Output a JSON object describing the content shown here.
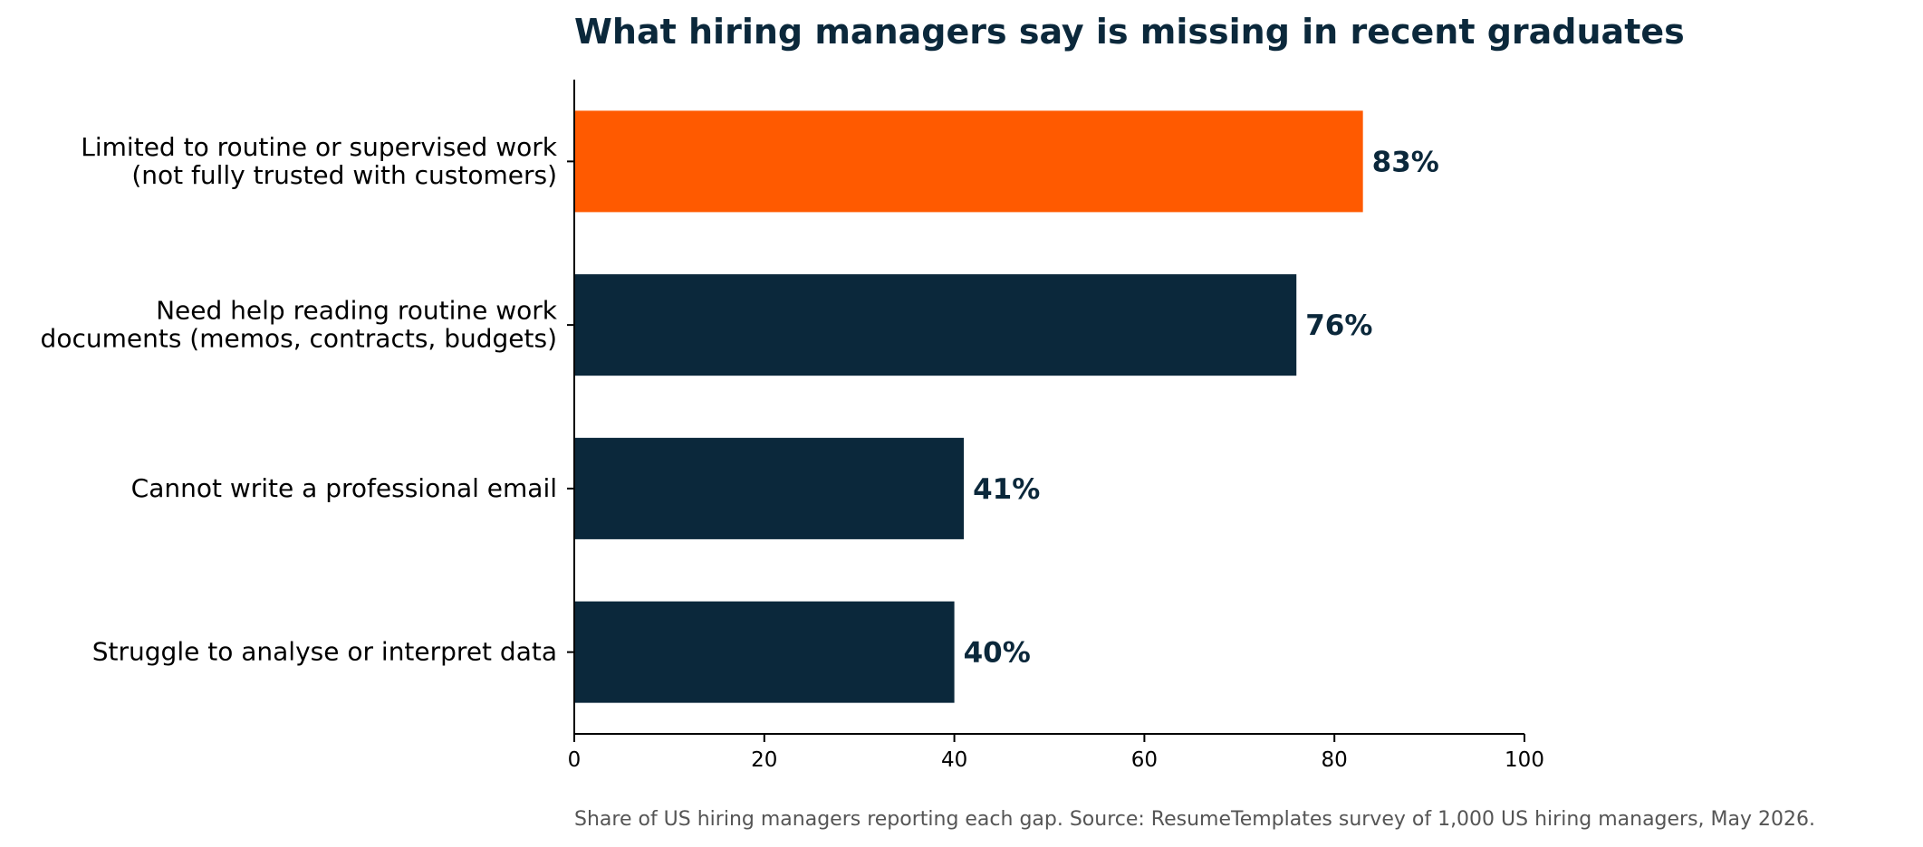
{
  "chart_data": {
    "type": "bar",
    "orientation": "horizontal",
    "title": "What hiring managers say is missing in recent graduates",
    "caption": "Share of US hiring managers reporting each gap. Source: ResumeTemplates survey of 1,000 US hiring managers, May 2026.",
    "categories": [
      [
        "Limited to routine or supervised work",
        "(not fully trusted with customers)"
      ],
      [
        "Need help reading routine work",
        "documents (memos, contracts, budgets)"
      ],
      [
        "Cannot write a professional email"
      ],
      [
        "Struggle to analyse or interpret data"
      ]
    ],
    "values": [
      83,
      76,
      41,
      40
    ],
    "data_labels": [
      "83%",
      "76%",
      "41%",
      "40%"
    ],
    "highlight_index": 0,
    "xlim": [
      0,
      100
    ],
    "xticks": [
      0,
      20,
      40,
      60,
      80,
      100
    ],
    "xtick_labels": [
      "0",
      "20",
      "40",
      "60",
      "80",
      "100"
    ],
    "grid": false,
    "colors": {
      "highlight": "#FF5A00",
      "bar": "#0B283B",
      "title": "#0B283B",
      "label": "#0B283B",
      "axis": "#000000",
      "text": "#000000",
      "caption": "#555555"
    }
  }
}
